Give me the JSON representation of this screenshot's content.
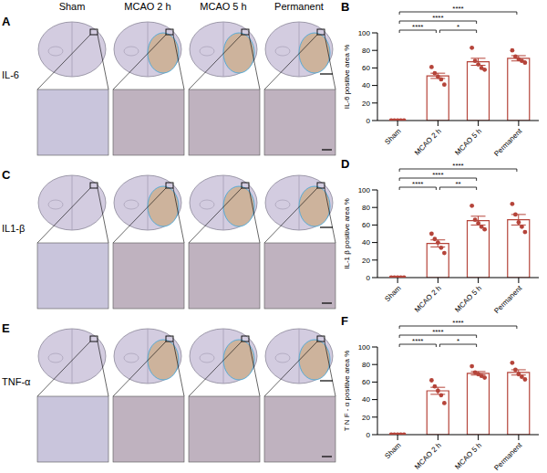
{
  "images": {
    "columns": [
      "Sham",
      "MCAO 2 h",
      "MCAO 5 h",
      "Permanent"
    ],
    "rows": [
      {
        "letter": "A",
        "label": "IL-6"
      },
      {
        "letter": "C",
        "label": "IL1-β"
      },
      {
        "letter": "E",
        "label": "TNF-α"
      }
    ]
  },
  "chart_data": [
    {
      "letter": "B",
      "type": "bar",
      "ylabel": "IL-6 positive area %",
      "categories": [
        "Sham",
        "MCAO 2 h",
        "MCAO 5 h",
        "Permanent"
      ],
      "values": [
        0,
        51,
        67,
        71
      ],
      "errors": [
        0,
        3,
        4,
        3
      ],
      "points": [
        [
          0,
          0,
          0,
          0,
          0
        ],
        [
          61,
          54,
          50,
          47,
          41
        ],
        [
          83,
          68,
          64,
          60,
          58
        ],
        [
          80,
          73,
          70,
          68,
          66
        ]
      ],
      "color": "#b5443a",
      "ylim": [
        0,
        100
      ],
      "yticks": [
        0,
        20,
        40,
        60,
        80,
        100
      ],
      "significance": [
        {
          "from": "Sham",
          "to": "MCAO 2 h",
          "label": "****"
        },
        {
          "from": "MCAO 2 h",
          "to": "MCAO 5 h",
          "label": "*"
        },
        {
          "from": "Sham",
          "to": "MCAO 5 h",
          "label": "****"
        },
        {
          "from": "Sham",
          "to": "Permanent",
          "label": "****"
        }
      ]
    },
    {
      "letter": "D",
      "type": "bar",
      "ylabel": "IL-1 β positive area %",
      "categories": [
        "Sham",
        "MCAO 2 h",
        "MCAO 5 h",
        "Permanent"
      ],
      "values": [
        0,
        39,
        65,
        66
      ],
      "errors": [
        0,
        4,
        5,
        6
      ],
      "points": [
        [
          0,
          0,
          0,
          0,
          0
        ],
        [
          50,
          44,
          40,
          34,
          28
        ],
        [
          82,
          66,
          62,
          58,
          55
        ],
        [
          84,
          72,
          63,
          58,
          52
        ]
      ],
      "color": "#b5443a",
      "ylim": [
        0,
        100
      ],
      "yticks": [
        0,
        20,
        40,
        60,
        80,
        100
      ],
      "significance": [
        {
          "from": "Sham",
          "to": "MCAO 2 h",
          "label": "****"
        },
        {
          "from": "MCAO 2 h",
          "to": "MCAO 5 h",
          "label": "**"
        },
        {
          "from": "Sham",
          "to": "MCAO 5 h",
          "label": "****"
        },
        {
          "from": "Sham",
          "to": "Permanent",
          "label": "****"
        }
      ]
    },
    {
      "letter": "F",
      "type": "bar",
      "ylabel": "T N F - α positive area %",
      "categories": [
        "Sham",
        "MCAO 2 h",
        "MCAO 5 h",
        "Permanent"
      ],
      "values": [
        0,
        50,
        70,
        71
      ],
      "errors": [
        0,
        4,
        2,
        3
      ],
      "points": [
        [
          0,
          0,
          0,
          0,
          0
        ],
        [
          62,
          55,
          50,
          45,
          36
        ],
        [
          78,
          71,
          69,
          67,
          65
        ],
        [
          82,
          74,
          69,
          66,
          63
        ]
      ],
      "color": "#b5443a",
      "ylim": [
        0,
        100
      ],
      "yticks": [
        0,
        20,
        40,
        60,
        80,
        100
      ],
      "significance": [
        {
          "from": "Sham",
          "to": "MCAO 2 h",
          "label": "****"
        },
        {
          "from": "MCAO 2 h",
          "to": "MCAO 5 h",
          "label": "*"
        },
        {
          "from": "Sham",
          "to": "MCAO 5 h",
          "label": "****"
        },
        {
          "from": "Sham",
          "to": "Permanent",
          "label": "****"
        }
      ]
    }
  ]
}
